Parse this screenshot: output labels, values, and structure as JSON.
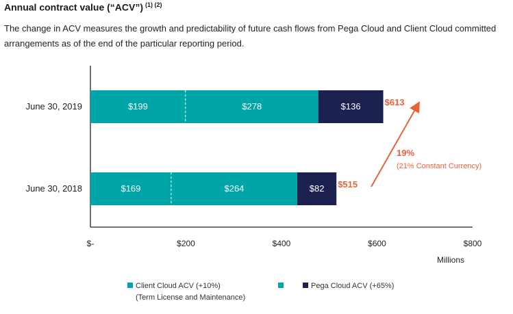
{
  "header": {
    "title": "Annual contract value (“ACV”)",
    "footnote_refs": "(1) (2)",
    "description": "The change in ACV measures the growth and predictability of future cash flows from Pega Cloud and Client Cloud committed arrangements as of the end of the particular reporting period."
  },
  "colors": {
    "teal": "#00a5a8",
    "navy": "#1c2150",
    "orange": "#e8633a",
    "axis": "#222222"
  },
  "chart_data": {
    "type": "bar",
    "orientation": "horizontal",
    "stacked": true,
    "categories": [
      "June 30, 2019",
      "June 30, 2018"
    ],
    "series": [
      {
        "name": "Client Cloud ACV (+10%) (Term License and Maintenance)",
        "part": "Term License",
        "values": [
          199,
          169
        ],
        "labels": [
          "$199",
          "$169"
        ]
      },
      {
        "name": "Client Cloud ACV (+10%) (Term License and Maintenance)",
        "part": "Maintenance",
        "values": [
          278,
          264
        ],
        "labels": [
          "$278",
          "$264"
        ]
      },
      {
        "name": "Pega Cloud ACV (+65%)",
        "values": [
          136,
          82
        ],
        "labels": [
          "$136",
          "$82"
        ]
      }
    ],
    "totals": [
      613,
      515
    ],
    "total_labels": [
      "$613",
      "$515"
    ],
    "xlim": [
      0,
      800
    ],
    "xticks": [
      0,
      200,
      400,
      600,
      800
    ],
    "xtick_labels": [
      "$-",
      "$200",
      "$400",
      "$600",
      "$800"
    ],
    "xlabel": "Millions",
    "annotation": {
      "growth": "19%",
      "constant_currency": "(21% Constant Currency)"
    },
    "legend": [
      {
        "label": "Client Cloud ACV (+10%)",
        "sublabel": "(Term License and Maintenance)"
      },
      {
        "label": "Pega Cloud ACV (+65%)"
      }
    ]
  }
}
